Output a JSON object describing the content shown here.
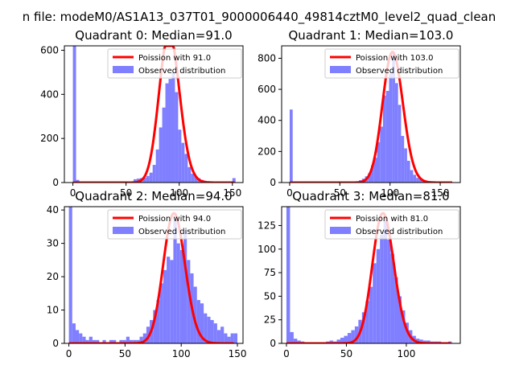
{
  "figure": {
    "suptitle": "n file: modeM0/AS1A13_037T01_9000006440_49814cztM0_level2_quad_clean"
  },
  "colors": {
    "observed": "#7f7fff",
    "poisson": "#ff0000",
    "axes": "#000000"
  },
  "chart_data": [
    {
      "type": "bar",
      "title": "Quadrant 0: Median=91.0",
      "xlim": [
        -8,
        160
      ],
      "ylim": [
        0,
        620
      ],
      "xticks": [
        0,
        50,
        100,
        150
      ],
      "yticks": [
        0,
        200,
        400,
        600
      ],
      "legend": {
        "placement": "top-right",
        "entries": [
          "Poission with 91.0",
          "Observed distribution"
        ]
      },
      "hist_bin_width": 3,
      "hist": [
        [
          0,
          620
        ],
        [
          3,
          12
        ],
        [
          6,
          5
        ],
        [
          9,
          3
        ],
        [
          12,
          2
        ],
        [
          15,
          2
        ],
        [
          18,
          2
        ],
        [
          21,
          2
        ],
        [
          24,
          2
        ],
        [
          27,
          2
        ],
        [
          30,
          2
        ],
        [
          33,
          2
        ],
        [
          36,
          2
        ],
        [
          39,
          2
        ],
        [
          42,
          2
        ],
        [
          45,
          2
        ],
        [
          48,
          2
        ],
        [
          51,
          3
        ],
        [
          54,
          5
        ],
        [
          57,
          15
        ],
        [
          60,
          18
        ],
        [
          63,
          20
        ],
        [
          66,
          22
        ],
        [
          69,
          30
        ],
        [
          72,
          45
        ],
        [
          75,
          80
        ],
        [
          78,
          150
        ],
        [
          81,
          250
        ],
        [
          84,
          340
        ],
        [
          87,
          450
        ],
        [
          90,
          470
        ],
        [
          93,
          500
        ],
        [
          96,
          410
        ],
        [
          99,
          240
        ],
        [
          102,
          180
        ],
        [
          105,
          130
        ],
        [
          108,
          70
        ],
        [
          111,
          40
        ],
        [
          114,
          28
        ],
        [
          117,
          20
        ],
        [
          120,
          12
        ],
        [
          123,
          8
        ],
        [
          126,
          6
        ],
        [
          129,
          4
        ],
        [
          132,
          3
        ],
        [
          135,
          3
        ],
        [
          138,
          2
        ],
        [
          141,
          2
        ],
        [
          144,
          2
        ],
        [
          147,
          2
        ],
        [
          150,
          20
        ]
      ],
      "poisson_label": "Poission with 91.0",
      "poisson_mean": 91.0,
      "poisson_peak": 680
    },
    {
      "type": "bar",
      "title": "Quadrant 1: Median=103.0",
      "xlim": [
        -8,
        170
      ],
      "ylim": [
        0,
        880
      ],
      "xticks": [
        0,
        50,
        100,
        150
      ],
      "yticks": [
        0,
        200,
        400,
        600,
        800
      ],
      "legend": {
        "placement": "top-right",
        "entries": [
          "Poission with 103.0",
          "Observed distribution"
        ]
      },
      "hist_bin_width": 3,
      "hist": [
        [
          0,
          470
        ],
        [
          3,
          5
        ],
        [
          6,
          3
        ],
        [
          9,
          2
        ],
        [
          12,
          2
        ],
        [
          15,
          2
        ],
        [
          18,
          2
        ],
        [
          21,
          2
        ],
        [
          24,
          2
        ],
        [
          27,
          2
        ],
        [
          30,
          2
        ],
        [
          33,
          2
        ],
        [
          36,
          2
        ],
        [
          39,
          2
        ],
        [
          42,
          2
        ],
        [
          45,
          2
        ],
        [
          48,
          2
        ],
        [
          51,
          2
        ],
        [
          54,
          2
        ],
        [
          57,
          2
        ],
        [
          60,
          3
        ],
        [
          63,
          5
        ],
        [
          66,
          8
        ],
        [
          69,
          15
        ],
        [
          72,
          25
        ],
        [
          75,
          40
        ],
        [
          78,
          60
        ],
        [
          81,
          110
        ],
        [
          84,
          160
        ],
        [
          87,
          260
        ],
        [
          90,
          360
        ],
        [
          93,
          560
        ],
        [
          96,
          590
        ],
        [
          99,
          700
        ],
        [
          102,
          830
        ],
        [
          105,
          640
        ],
        [
          108,
          500
        ],
        [
          111,
          300
        ],
        [
          114,
          220
        ],
        [
          117,
          140
        ],
        [
          120,
          80
        ],
        [
          123,
          50
        ],
        [
          126,
          30
        ],
        [
          129,
          20
        ],
        [
          132,
          12
        ],
        [
          135,
          8
        ],
        [
          138,
          5
        ],
        [
          141,
          3
        ],
        [
          144,
          2
        ],
        [
          147,
          2
        ],
        [
          150,
          2
        ]
      ],
      "poisson_label": "Poission with 103.0",
      "poisson_mean": 103.0,
      "poisson_peak": 840
    },
    {
      "type": "bar",
      "title": "Quadrant 2: Median=94.0",
      "xlim": [
        -4,
        155
      ],
      "ylim": [
        0,
        41
      ],
      "xticks": [
        0,
        50,
        100,
        150
      ],
      "yticks": [
        0,
        10,
        20,
        30,
        40
      ],
      "legend": {
        "placement": "top-right",
        "entries": [
          "Poission with 94.0",
          "Observed distribution"
        ]
      },
      "hist_bin_width": 3,
      "hist": [
        [
          0,
          41
        ],
        [
          3,
          6
        ],
        [
          6,
          4
        ],
        [
          9,
          3
        ],
        [
          12,
          2
        ],
        [
          15,
          1
        ],
        [
          18,
          2
        ],
        [
          21,
          1
        ],
        [
          24,
          1
        ],
        [
          27,
          0
        ],
        [
          30,
          1
        ],
        [
          33,
          0
        ],
        [
          36,
          1
        ],
        [
          39,
          1
        ],
        [
          42,
          0
        ],
        [
          45,
          1
        ],
        [
          48,
          1
        ],
        [
          51,
          2
        ],
        [
          54,
          1
        ],
        [
          57,
          1
        ],
        [
          60,
          1
        ],
        [
          63,
          2
        ],
        [
          66,
          3
        ],
        [
          69,
          5
        ],
        [
          72,
          7
        ],
        [
          75,
          10
        ],
        [
          78,
          13
        ],
        [
          81,
          18
        ],
        [
          84,
          22
        ],
        [
          87,
          26
        ],
        [
          90,
          25
        ],
        [
          93,
          37
        ],
        [
          96,
          30
        ],
        [
          99,
          28
        ],
        [
          102,
          34
        ],
        [
          105,
          25
        ],
        [
          108,
          21
        ],
        [
          111,
          17
        ],
        [
          114,
          13
        ],
        [
          117,
          12
        ],
        [
          120,
          9
        ],
        [
          123,
          8
        ],
        [
          126,
          7
        ],
        [
          129,
          6
        ],
        [
          132,
          4
        ],
        [
          135,
          5
        ],
        [
          138,
          3
        ],
        [
          141,
          2
        ],
        [
          144,
          3
        ],
        [
          147,
          3
        ]
      ],
      "poisson_label": "Poission with 94.0",
      "poisson_mean": 94.0,
      "poisson_peak": 39
    },
    {
      "type": "bar",
      "title": "Quadrant 3: Median=81.0",
      "xlim": [
        -4,
        145
      ],
      "ylim": [
        0,
        145
      ],
      "xticks": [
        0,
        50,
        100
      ],
      "yticks": [
        0,
        25,
        50,
        75,
        100,
        125
      ],
      "legend": {
        "placement": "top-right",
        "entries": [
          "Poission with 81.0",
          "Observed distribution"
        ]
      },
      "hist_bin_width": 3,
      "hist": [
        [
          0,
          145
        ],
        [
          3,
          12
        ],
        [
          6,
          5
        ],
        [
          9,
          3
        ],
        [
          12,
          2
        ],
        [
          15,
          1
        ],
        [
          18,
          1
        ],
        [
          21,
          1
        ],
        [
          24,
          1
        ],
        [
          27,
          1
        ],
        [
          30,
          1
        ],
        [
          33,
          2
        ],
        [
          36,
          3
        ],
        [
          39,
          2
        ],
        [
          42,
          4
        ],
        [
          45,
          6
        ],
        [
          48,
          8
        ],
        [
          51,
          11
        ],
        [
          54,
          14
        ],
        [
          57,
          18
        ],
        [
          60,
          25
        ],
        [
          63,
          33
        ],
        [
          66,
          45
        ],
        [
          69,
          60
        ],
        [
          72,
          85
        ],
        [
          75,
          100
        ],
        [
          78,
          115
        ],
        [
          81,
          130
        ],
        [
          84,
          110
        ],
        [
          87,
          95
        ],
        [
          90,
          70
        ],
        [
          93,
          50
        ],
        [
          96,
          35
        ],
        [
          99,
          22
        ],
        [
          102,
          14
        ],
        [
          105,
          8
        ],
        [
          108,
          5
        ],
        [
          111,
          4
        ],
        [
          114,
          3
        ],
        [
          117,
          3
        ],
        [
          120,
          2
        ],
        [
          123,
          2
        ],
        [
          126,
          2
        ],
        [
          129,
          1
        ],
        [
          132,
          1
        ],
        [
          135,
          2
        ]
      ],
      "poisson_label": "Poission with 81.0",
      "poisson_mean": 81.0,
      "poisson_peak": 138
    }
  ]
}
